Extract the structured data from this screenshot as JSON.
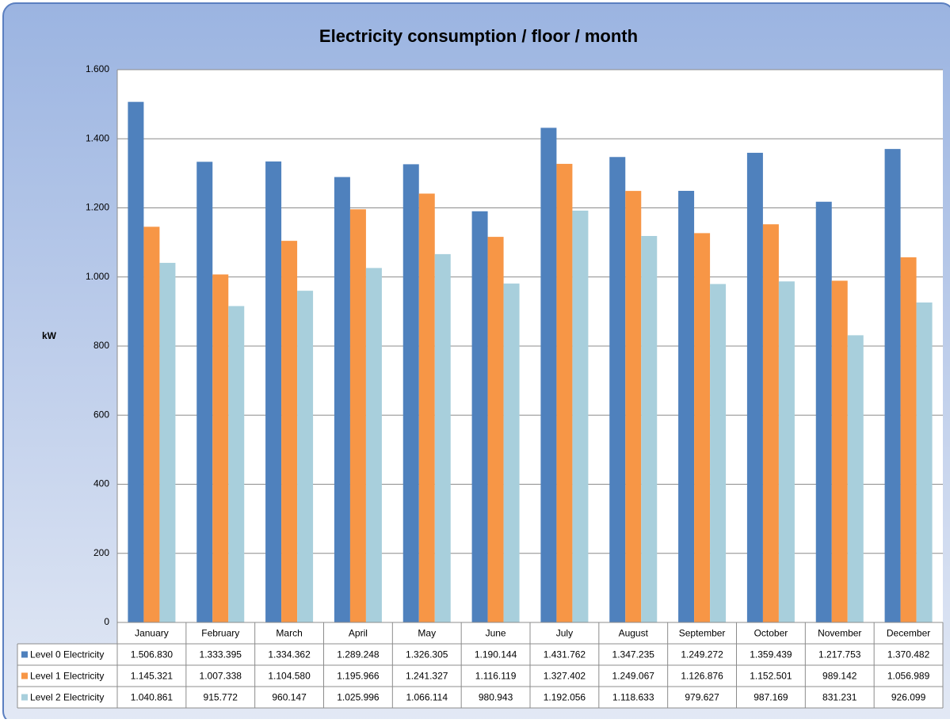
{
  "chart_data": {
    "type": "bar",
    "title": "Electricity consumption / floor / month",
    "y_label": "kW",
    "categories": [
      "January",
      "February",
      "March",
      "April",
      "May",
      "June",
      "July",
      "August",
      "September",
      "October",
      "November",
      "December"
    ],
    "series": [
      {
        "name": "Level 0 Electricity",
        "color": "#4f81bd",
        "values": [
          1506.83,
          1333.395,
          1334.362,
          1289.248,
          1326.305,
          1190.144,
          1431.762,
          1347.235,
          1249.272,
          1359.439,
          1217.753,
          1370.482
        ],
        "value_labels": [
          "1.506.830",
          "1.333.395",
          "1.334.362",
          "1.289.248",
          "1.326.305",
          "1.190.144",
          "1.431.762",
          "1.347.235",
          "1.249.272",
          "1.359.439",
          "1.217.753",
          "1.370.482"
        ]
      },
      {
        "name": "Level 1 Electricity",
        "color": "#f79646",
        "values": [
          1145.321,
          1007.338,
          1104.58,
          1195.966,
          1241.327,
          1116.119,
          1327.402,
          1249.067,
          1126.876,
          1152.501,
          989.142,
          1056.989
        ],
        "value_labels": [
          "1.145.321",
          "1.007.338",
          "1.104.580",
          "1.195.966",
          "1.241.327",
          "1.116.119",
          "1.327.402",
          "1.249.067",
          "1.126.876",
          "1.152.501",
          "989.142",
          "1.056.989"
        ]
      },
      {
        "name": "Level 2 Electricity",
        "color": "#a8cfdc",
        "values": [
          1040.861,
          915.772,
          960.147,
          1025.996,
          1066.114,
          980.943,
          1192.056,
          1118.633,
          979.627,
          987.169,
          831.231,
          926.099
        ],
        "value_labels": [
          "1.040.861",
          "915.772",
          "960.147",
          "1.025.996",
          "1.066.114",
          "980.943",
          "1.192.056",
          "1.118.633",
          "979.627",
          "987.169",
          "831.231",
          "926.099"
        ]
      }
    ],
    "ylim": [
      0,
      1600
    ],
    "yticks": [
      0,
      200,
      400,
      600,
      800,
      {
        "value": 1000,
        "label": "1.000"
      },
      {
        "value": 1200,
        "label": "1.200"
      },
      {
        "value": 1400,
        "label": "1.400"
      },
      {
        "value": 1600,
        "label": "1.600"
      }
    ],
    "grid": true,
    "data_table": true
  }
}
